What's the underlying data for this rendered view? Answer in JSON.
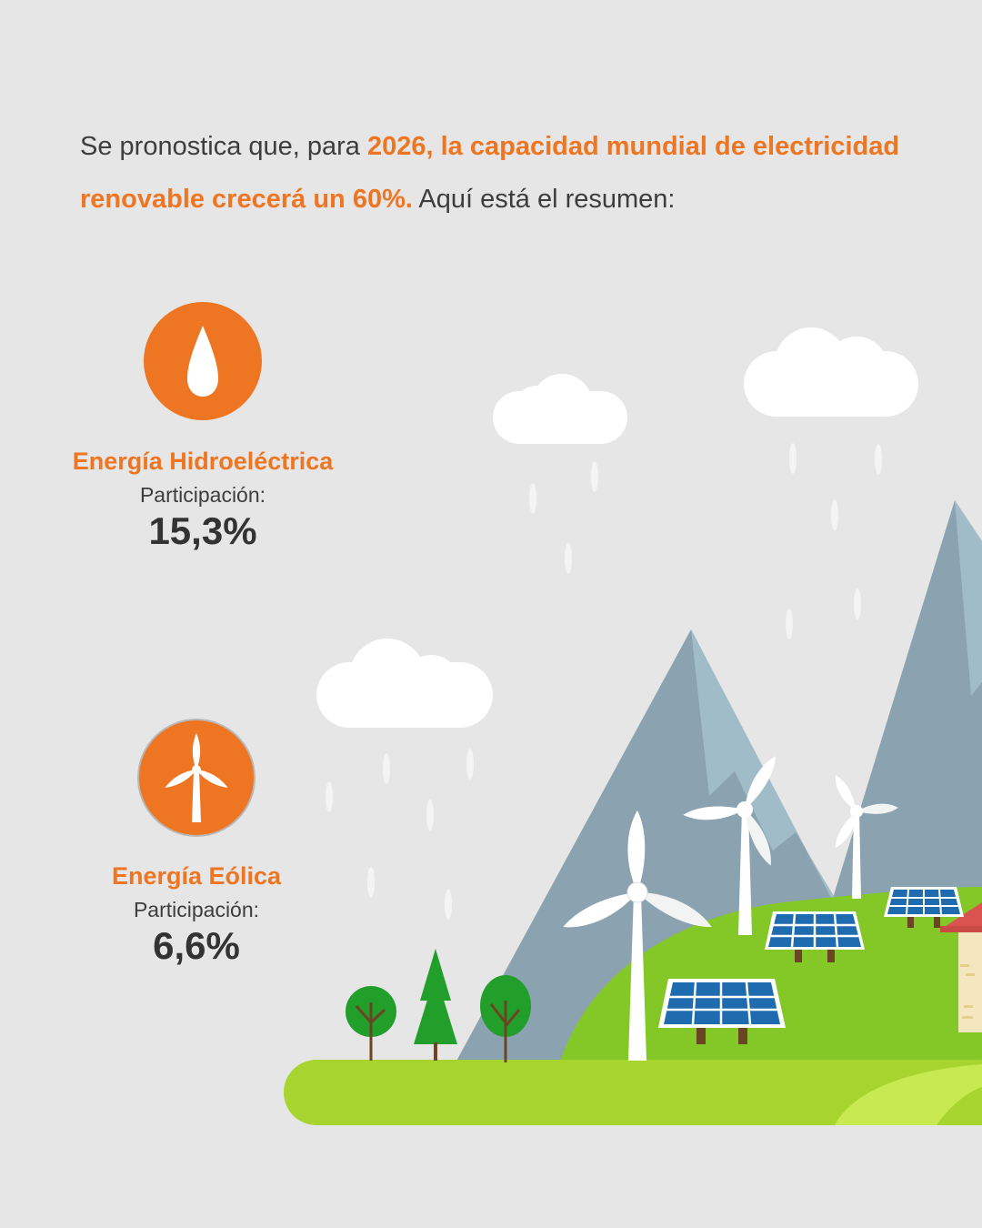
{
  "intro": {
    "prefix": "Se pronostica que, para ",
    "highlight": "2026, la capacidad mundial de electricidad renovable crecerá un 60%.",
    "suffix": " Aquí está el resumen:"
  },
  "stats": [
    {
      "icon": "water-drop-icon",
      "title": "Energía Hidroeléctrica",
      "label": "Participación:",
      "value": "15,3%"
    },
    {
      "icon": "wind-turbine-icon",
      "title": "Energía Eólica",
      "label": "Participación:",
      "value": "6,6%"
    }
  ],
  "colors": {
    "accent": "#ee7623",
    "background": "#e6e6e6",
    "text": "#3d3d3d",
    "mountain": "#8ba3b0",
    "mountain_light": "#a0bcc8",
    "hill": "#84c828",
    "ground": "#a8d430",
    "solar_panel": "#1f6bb0",
    "tree": "#229e2a"
  }
}
